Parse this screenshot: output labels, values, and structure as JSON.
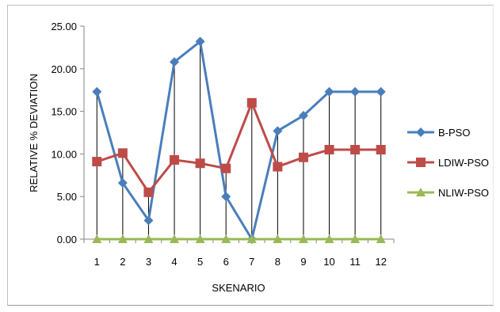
{
  "chart_data": {
    "type": "line",
    "title": "",
    "xlabel": "SKENARIO",
    "ylabel": "RELATIVE % DEVIATION",
    "categories": [
      "1",
      "2",
      "3",
      "4",
      "5",
      "6",
      "7",
      "8",
      "9",
      "10",
      "11",
      "12"
    ],
    "ylim": [
      0,
      25
    ],
    "yticks": [
      "0.00",
      "5.00",
      "10.00",
      "15.00",
      "20.00",
      "25.00"
    ],
    "ytick_values": [
      0,
      5,
      10,
      15,
      20,
      25
    ],
    "grid": "vertical drop lines",
    "legend_position": "right",
    "series": [
      {
        "name": "B-PSO",
        "color": "#4a7ebb",
        "marker": "diamond",
        "values": [
          17.3,
          6.6,
          2.2,
          20.8,
          23.2,
          5.0,
          0.0,
          12.7,
          14.5,
          17.3,
          17.3,
          17.3
        ]
      },
      {
        "name": "LDIW-PSO",
        "color": "#be4b48",
        "marker": "square",
        "values": [
          9.1,
          10.1,
          5.5,
          9.3,
          8.9,
          8.3,
          16.0,
          8.5,
          9.6,
          10.5,
          10.5,
          10.5
        ]
      },
      {
        "name": "NLIW-PSO",
        "color": "#98b954",
        "marker": "triangle",
        "values": [
          0,
          0,
          0,
          0,
          0,
          0,
          0,
          0,
          0,
          0,
          0,
          0
        ]
      }
    ]
  }
}
